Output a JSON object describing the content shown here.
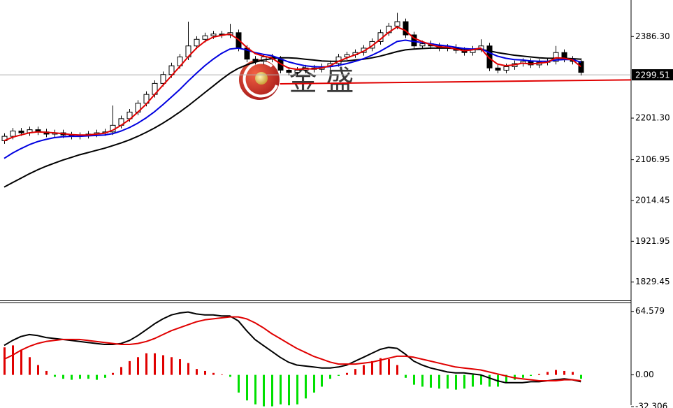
{
  "chart_data": [
    {
      "type": "candlestick",
      "watermark": "金 盛",
      "xlim": [
        -0.5,
        75
      ],
      "ylim": [
        1791,
        2466
      ],
      "yticks": [
        {
          "value": 2386.3,
          "label": "2386.30"
        },
        {
          "value": 2201.3,
          "label": "2201.30"
        },
        2106.95,
        2014.45,
        1921.95,
        1829.45
      ],
      "last_price": 2299.51,
      "up_color": "#ffffff",
      "down_color": "#000000",
      "outline_color": "#000000",
      "open": [
        2150,
        2160,
        2172,
        2168,
        2175,
        2170,
        2165,
        2168,
        2163,
        2160,
        2162,
        2165,
        2168,
        2170,
        2185,
        2200,
        2215,
        2235,
        2255,
        2280,
        2300,
        2320,
        2340,
        2365,
        2380,
        2388,
        2392,
        2390,
        2395,
        2360,
        2335,
        2330,
        2340,
        2335,
        2310,
        2305,
        2310,
        2315,
        2312,
        2318,
        2325,
        2340,
        2345,
        2350,
        2360,
        2375,
        2395,
        2410,
        2420,
        2390,
        2365,
        2370,
        2365,
        2360,
        2362,
        2355,
        2350,
        2358,
        2365,
        2315,
        2310,
        2318,
        2325,
        2330,
        2322,
        2328,
        2330,
        2350,
        2335,
        2330
      ],
      "high": [
        2167,
        2179,
        2179,
        2182,
        2182,
        2177,
        2175,
        2175,
        2170,
        2169,
        2172,
        2175,
        2177,
        2230,
        2207,
        2222,
        2242,
        2262,
        2287,
        2307,
        2327,
        2347,
        2420,
        2387,
        2395,
        2399,
        2399,
        2415,
        2402,
        2367,
        2342,
        2347,
        2347,
        2342,
        2317,
        2317,
        2322,
        2322,
        2325,
        2332,
        2347,
        2352,
        2357,
        2367,
        2382,
        2402,
        2417,
        2440,
        2427,
        2397,
        2377,
        2377,
        2372,
        2369,
        2369,
        2362,
        2365,
        2380,
        2372,
        2322,
        2325,
        2332,
        2337,
        2337,
        2335,
        2337,
        2365,
        2357,
        2342,
        2337
      ],
      "low": [
        2143,
        2153,
        2161,
        2161,
        2163,
        2158,
        2158,
        2156,
        2153,
        2153,
        2155,
        2158,
        2161,
        2163,
        2178,
        2193,
        2208,
        2228,
        2248,
        2273,
        2293,
        2313,
        2333,
        2358,
        2373,
        2381,
        2383,
        2383,
        2353,
        2328,
        2323,
        2323,
        2328,
        2303,
        2298,
        2298,
        2303,
        2305,
        2305,
        2311,
        2318,
        2333,
        2338,
        2343,
        2353,
        2368,
        2388,
        2403,
        2383,
        2358,
        2358,
        2358,
        2353,
        2353,
        2348,
        2343,
        2343,
        2351,
        2308,
        2303,
        2303,
        2311,
        2318,
        2315,
        2315,
        2321,
        2323,
        2328,
        2323,
        2298
      ],
      "close": [
        2160,
        2172,
        2168,
        2175,
        2170,
        2165,
        2168,
        2163,
        2160,
        2162,
        2165,
        2168,
        2170,
        2185,
        2200,
        2215,
        2235,
        2255,
        2280,
        2300,
        2320,
        2340,
        2365,
        2380,
        2388,
        2392,
        2390,
        2395,
        2360,
        2335,
        2330,
        2340,
        2335,
        2310,
        2305,
        2310,
        2315,
        2312,
        2318,
        2325,
        2340,
        2345,
        2350,
        2360,
        2375,
        2395,
        2410,
        2420,
        2390,
        2365,
        2370,
        2365,
        2360,
        2362,
        2355,
        2350,
        2358,
        2365,
        2315,
        2310,
        2318,
        2325,
        2330,
        2322,
        2328,
        2330,
        2350,
        2335,
        2330,
        2305
      ],
      "series": [
        {
          "color": "#000000",
          "values": [
            2045,
            2055,
            2065,
            2075,
            2084,
            2092,
            2099,
            2106,
            2112,
            2118,
            2123,
            2128,
            2133,
            2139,
            2145,
            2152,
            2160,
            2169,
            2179,
            2190,
            2202,
            2215,
            2229,
            2244,
            2259,
            2274,
            2289,
            2303,
            2314,
            2322,
            2328,
            2333,
            2336,
            2338,
            2338,
            2337,
            2335,
            2333,
            2331,
            2330,
            2330,
            2331,
            2333,
            2335,
            2338,
            2342,
            2347,
            2352,
            2356,
            2358,
            2359,
            2360,
            2360,
            2360,
            2359,
            2358,
            2357,
            2357,
            2354,
            2350,
            2347,
            2344,
            2342,
            2340,
            2338,
            2337,
            2337,
            2337,
            2336,
            2335
          ]
        },
        {
          "color": "#0000e0",
          "values": [
            2110,
            2122,
            2132,
            2141,
            2148,
            2153,
            2157,
            2159,
            2160,
            2160,
            2161,
            2162,
            2163,
            2166,
            2172,
            2180,
            2190,
            2202,
            2216,
            2232,
            2249,
            2266,
            2285,
            2303,
            2320,
            2335,
            2348,
            2358,
            2360,
            2356,
            2350,
            2346,
            2343,
            2336,
            2329,
            2324,
            2320,
            2318,
            2317,
            2318,
            2321,
            2325,
            2330,
            2336,
            2344,
            2353,
            2364,
            2375,
            2378,
            2375,
            2373,
            2370,
            2367,
            2365,
            2362,
            2359,
            2358,
            2359,
            2350,
            2342,
            2337,
            2334,
            2333,
            2331,
            2330,
            2330,
            2333,
            2334,
            2334,
            2328
          ]
        },
        {
          "color": "#e00000",
          "values": [
            2150,
            2158,
            2163,
            2168,
            2170,
            2169,
            2168,
            2166,
            2164,
            2163,
            2163,
            2165,
            2167,
            2174,
            2185,
            2198,
            2215,
            2233,
            2255,
            2276,
            2297,
            2318,
            2340,
            2360,
            2375,
            2385,
            2389,
            2392,
            2380,
            2362,
            2348,
            2342,
            2338,
            2325,
            2315,
            2312,
            2313,
            2313,
            2315,
            2320,
            2330,
            2338,
            2345,
            2353,
            2365,
            2380,
            2396,
            2408,
            2400,
            2383,
            2375,
            2368,
            2363,
            2362,
            2358,
            2354,
            2356,
            2360,
            2338,
            2324,
            2320,
            2322,
            2326,
            2324,
            2326,
            2328,
            2338,
            2337,
            2333,
            2318
          ]
        }
      ],
      "support_line": {
        "color": "#e00000",
        "x": [
          33,
          75
        ],
        "values": [
          2279,
          2288
        ]
      }
    },
    {
      "type": "macd",
      "xlim": [
        -0.5,
        75
      ],
      "ylim": [
        -33,
        71.5
      ],
      "yticks": [
        64.579,
        {
          "value": 0,
          "label": "0.00"
        },
        -32.306
      ],
      "histogram": {
        "up_color": "#e00000",
        "down_color": "#00e000",
        "values": [
          28,
          30,
          25,
          18,
          10,
          4,
          -2,
          -4,
          -5,
          -4,
          -4,
          -5,
          -3,
          2,
          8,
          14,
          18,
          22,
          22,
          20,
          18,
          16,
          12,
          6,
          4,
          2,
          0.5,
          -2,
          -18,
          -26,
          -30,
          -32,
          -32,
          -30,
          -31,
          -30,
          -24,
          -18,
          -12,
          -4,
          -1,
          2,
          6,
          10,
          14,
          17,
          16,
          10,
          -3,
          -10,
          -12,
          -13,
          -14,
          -14,
          -15,
          -14,
          -12,
          -10,
          -12,
          -12,
          -8,
          -5,
          -3,
          -1,
          1,
          3,
          5,
          4,
          3,
          -4
        ]
      },
      "series": [
        {
          "color": "#000000",
          "values": [
            30,
            35,
            39,
            41,
            40,
            38,
            37,
            36,
            35,
            34,
            33,
            32,
            31,
            31,
            32,
            35,
            40,
            46,
            52,
            57,
            61,
            63,
            64,
            62,
            61,
            61,
            60,
            60,
            55,
            45,
            36,
            30,
            24,
            18,
            13,
            10,
            9,
            8,
            7,
            7,
            8,
            10,
            14,
            18,
            22,
            26,
            28,
            27,
            21,
            14,
            10,
            7,
            5,
            3,
            2,
            2,
            1,
            0,
            -3,
            -6,
            -8,
            -8,
            -8,
            -7,
            -7,
            -6,
            -5,
            -4,
            -5,
            -7
          ]
        },
        {
          "color": "#e00000",
          "values": [
            16,
            20,
            25,
            29,
            32,
            34,
            35,
            36,
            36,
            36,
            35,
            34,
            33,
            32,
            31,
            31,
            32,
            34,
            37,
            41,
            45,
            48,
            51,
            54,
            56,
            57,
            58,
            59,
            59,
            57,
            53,
            48,
            42,
            37,
            32,
            27,
            23,
            19,
            16,
            13,
            11,
            11,
            11,
            12,
            13,
            15,
            17,
            19,
            19,
            18,
            16,
            14,
            12,
            10,
            8,
            7,
            6,
            5,
            3,
            1,
            -1,
            -3,
            -4,
            -5,
            -6,
            -6,
            -6,
            -5,
            -5,
            -6
          ]
        }
      ]
    }
  ]
}
